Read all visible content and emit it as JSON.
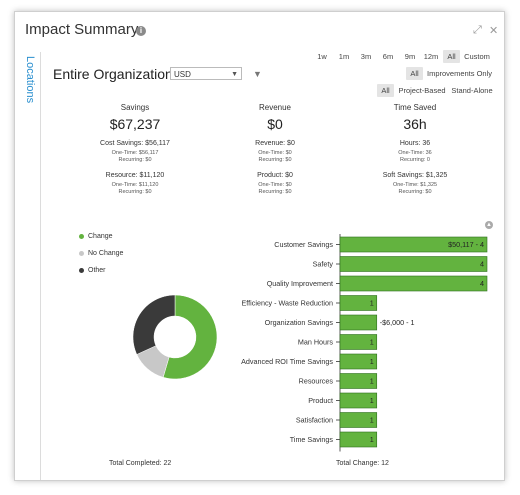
{
  "header": {
    "title": "Impact Summary"
  },
  "sidebar": {
    "tab_label": "Locations"
  },
  "org": {
    "title": "Entire Organization",
    "currency": "USD"
  },
  "time_ranges": [
    "1w",
    "1m",
    "3m",
    "6m",
    "9m",
    "12m",
    "All",
    "Custom"
  ],
  "time_range_selected": "All",
  "filters": {
    "improvements": [
      "All",
      "Improvements Only"
    ],
    "types": [
      "All",
      "Project-Based",
      "Stand-Alone"
    ]
  },
  "metrics": {
    "savings": {
      "label": "Savings",
      "value": "$67,237",
      "cost": "Cost Savings: $56,117",
      "cost_onetime": "One-Time: $56,117",
      "cost_recurring": "Recurring: $0",
      "resource": "Resource: $11,120",
      "resource_onetime": "One-Time: $11,120",
      "resource_recurring": "Recurring: $0"
    },
    "revenue": {
      "label": "Revenue",
      "value": "$0",
      "revenue": "Revenue: $0",
      "revenue_onetime": "One-Time: $0",
      "revenue_recurring": "Recurring: $0",
      "product": "Product: $0",
      "product_onetime": "One-Time: $0",
      "product_recurring": "Recurring: $0"
    },
    "time_saved": {
      "label": "Time Saved",
      "value": "36h",
      "hours": "Hours: 36",
      "hours_onetime": "One-Time: 36",
      "hours_recurring": "Recurring: 0",
      "soft": "Soft Savings: $1,325",
      "soft_onetime": "One-Time: $1,325",
      "soft_recurring": "Recurring: $0"
    }
  },
  "legend": [
    "Change",
    "No Change",
    "Other"
  ],
  "colors": {
    "change": "#63b33f",
    "no_change": "#c8c8c8",
    "other": "#3a3a3a",
    "link": "#2a8fcf"
  },
  "footer": {
    "total_completed": "Total Completed: 22",
    "total_change": "Total Change: 12"
  },
  "chart_data": [
    {
      "type": "pie",
      "labels": [
        "Change",
        "No Change",
        "Other"
      ],
      "values": [
        12,
        3,
        7
      ]
    },
    {
      "type": "bar",
      "categories": [
        "Customer Savings",
        "Safety",
        "Quality Improvement",
        "Efficiency - Waste Reduction",
        "Organization Savings",
        "Man Hours",
        "Advanced ROI Time Savings",
        "Resources",
        "Product",
        "Satisfaction",
        "Time Savings"
      ],
      "values": [
        4,
        4,
        4,
        1,
        1,
        1,
        1,
        1,
        1,
        1,
        1
      ],
      "data_labels": [
        "$50,117 - 4",
        "4",
        "4",
        "1",
        "-$6,000 - 1",
        "1",
        "1",
        "1",
        "1",
        "1",
        "1"
      ],
      "xlim": [
        0,
        4
      ]
    }
  ]
}
